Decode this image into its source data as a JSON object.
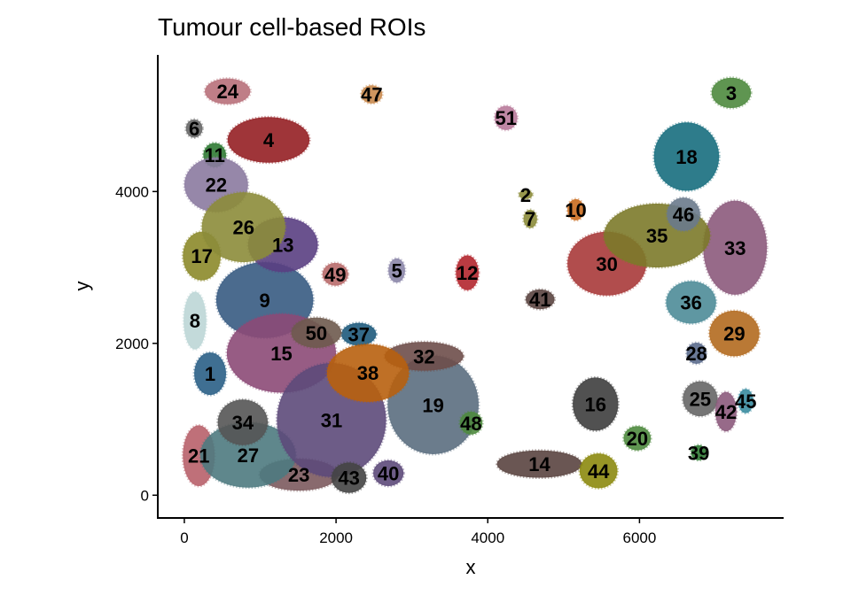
{
  "chart_data": {
    "type": "scatter",
    "title": "Tumour cell-based ROIs",
    "xlabel": "x",
    "ylabel": "y",
    "xlim": [
      -350,
      7900
    ],
    "ylim": [
      -300,
      5800
    ],
    "xticks": [
      0,
      2000,
      4000,
      6000
    ],
    "xtick_labels": [
      "0",
      "2000",
      "4000",
      "6000"
    ],
    "yticks": [
      0,
      2000,
      4000
    ],
    "ytick_labels": [
      "0",
      "2000",
      "4000"
    ],
    "regions": [
      {
        "label": "1",
        "x": 340,
        "y": 1600,
        "rx": 210,
        "ry": 280,
        "color": "#2a5f86"
      },
      {
        "label": "2",
        "x": 4500,
        "y": 3960,
        "rx": 90,
        "ry": 60,
        "color": "#8c8c3a"
      },
      {
        "label": "3",
        "x": 7210,
        "y": 5300,
        "rx": 260,
        "ry": 200,
        "color": "#4e8a3e"
      },
      {
        "label": "4",
        "x": 1110,
        "y": 4680,
        "rx": 540,
        "ry": 300,
        "color": "#951f24"
      },
      {
        "label": "5",
        "x": 2800,
        "y": 2960,
        "rx": 110,
        "ry": 160,
        "color": "#8b86a8"
      },
      {
        "label": "6",
        "x": 130,
        "y": 4830,
        "rx": 110,
        "ry": 120,
        "color": "#666666"
      },
      {
        "label": "7",
        "x": 4560,
        "y": 3640,
        "rx": 90,
        "ry": 120,
        "color": "#8c8c3a"
      },
      {
        "label": "8",
        "x": 140,
        "y": 2300,
        "rx": 150,
        "ry": 380,
        "color": "#bcd6d6"
      },
      {
        "label": "9",
        "x": 1060,
        "y": 2570,
        "rx": 640,
        "ry": 500,
        "color": "#375b82"
      },
      {
        "label": "10",
        "x": 5160,
        "y": 3760,
        "rx": 110,
        "ry": 140,
        "color": "#c96c1f"
      },
      {
        "label": "11",
        "x": 400,
        "y": 4480,
        "rx": 150,
        "ry": 160,
        "color": "#2f7a33"
      },
      {
        "label": "12",
        "x": 3730,
        "y": 2930,
        "rx": 150,
        "ry": 230,
        "color": "#b3262e"
      },
      {
        "label": "13",
        "x": 1300,
        "y": 3300,
        "rx": 460,
        "ry": 360,
        "color": "#5a3f82"
      },
      {
        "label": "14",
        "x": 4680,
        "y": 410,
        "rx": 560,
        "ry": 180,
        "color": "#5a4440"
      },
      {
        "label": "15",
        "x": 1280,
        "y": 1870,
        "rx": 720,
        "ry": 520,
        "color": "#8c4a77"
      },
      {
        "label": "16",
        "x": 5420,
        "y": 1200,
        "rx": 300,
        "ry": 350,
        "color": "#3e3e3e"
      },
      {
        "label": "17",
        "x": 230,
        "y": 3150,
        "rx": 250,
        "ry": 320,
        "color": "#8c8a2a"
      },
      {
        "label": "18",
        "x": 6620,
        "y": 4460,
        "rx": 430,
        "ry": 450,
        "color": "#176e7e"
      },
      {
        "label": "19",
        "x": 3280,
        "y": 1190,
        "rx": 600,
        "ry": 650,
        "color": "#5b6e80"
      },
      {
        "label": "20",
        "x": 5970,
        "y": 750,
        "rx": 180,
        "ry": 160,
        "color": "#4e8a3e"
      },
      {
        "label": "21",
        "x": 190,
        "y": 520,
        "rx": 210,
        "ry": 400,
        "color": "#b8616a"
      },
      {
        "label": "22",
        "x": 420,
        "y": 4090,
        "rx": 420,
        "ry": 360,
        "color": "#8b7aa0"
      },
      {
        "label": "23",
        "x": 1510,
        "y": 270,
        "rx": 520,
        "ry": 210,
        "color": "#7c5a5e"
      },
      {
        "label": "24",
        "x": 570,
        "y": 5320,
        "rx": 300,
        "ry": 170,
        "color": "#b8707a"
      },
      {
        "label": "25",
        "x": 6800,
        "y": 1270,
        "rx": 230,
        "ry": 230,
        "color": "#666666"
      },
      {
        "label": "26",
        "x": 780,
        "y": 3530,
        "rx": 550,
        "ry": 460,
        "color": "#8c8c3a"
      },
      {
        "label": "27",
        "x": 840,
        "y": 530,
        "rx": 630,
        "ry": 430,
        "color": "#4e7a80"
      },
      {
        "label": "28",
        "x": 6750,
        "y": 1870,
        "rx": 130,
        "ry": 140,
        "color": "#5a6a8c"
      },
      {
        "label": "29",
        "x": 7250,
        "y": 2130,
        "rx": 330,
        "ry": 300,
        "color": "#b36a1f"
      },
      {
        "label": "30",
        "x": 5570,
        "y": 3050,
        "rx": 520,
        "ry": 420,
        "color": "#a83a3a"
      },
      {
        "label": "31",
        "x": 1940,
        "y": 990,
        "rx": 720,
        "ry": 750,
        "color": "#5d4a7a"
      },
      {
        "label": "32",
        "x": 3160,
        "y": 1830,
        "rx": 520,
        "ry": 190,
        "color": "#6e4e4a"
      },
      {
        "label": "33",
        "x": 7260,
        "y": 3260,
        "rx": 420,
        "ry": 620,
        "color": "#8c5a7c"
      },
      {
        "label": "34",
        "x": 770,
        "y": 960,
        "rx": 330,
        "ry": 300,
        "color": "#555555"
      },
      {
        "label": "35",
        "x": 6230,
        "y": 3420,
        "rx": 700,
        "ry": 420,
        "color": "#7c7a2a"
      },
      {
        "label": "36",
        "x": 6680,
        "y": 2540,
        "rx": 330,
        "ry": 280,
        "color": "#4e8c98"
      },
      {
        "label": "37",
        "x": 2300,
        "y": 2120,
        "rx": 230,
        "ry": 150,
        "color": "#1e5a7c"
      },
      {
        "label": "38",
        "x": 2420,
        "y": 1610,
        "rx": 540,
        "ry": 380,
        "color": "#b8600e"
      },
      {
        "label": "39",
        "x": 6780,
        "y": 560,
        "rx": 100,
        "ry": 100,
        "color": "#2f7a33"
      },
      {
        "label": "40",
        "x": 2690,
        "y": 290,
        "rx": 200,
        "ry": 170,
        "color": "#5d4a7a"
      },
      {
        "label": "41",
        "x": 4690,
        "y": 2580,
        "rx": 190,
        "ry": 130,
        "color": "#5a4440"
      },
      {
        "label": "42",
        "x": 7140,
        "y": 1100,
        "rx": 140,
        "ry": 260,
        "color": "#8c5a7c"
      },
      {
        "label": "43",
        "x": 2170,
        "y": 230,
        "rx": 230,
        "ry": 200,
        "color": "#444444"
      },
      {
        "label": "44",
        "x": 5460,
        "y": 320,
        "rx": 250,
        "ry": 230,
        "color": "#8c8a0e"
      },
      {
        "label": "45",
        "x": 7400,
        "y": 1240,
        "rx": 100,
        "ry": 160,
        "color": "#3a8ca0"
      },
      {
        "label": "46",
        "x": 6580,
        "y": 3700,
        "rx": 220,
        "ry": 220,
        "color": "#6a7a8c"
      },
      {
        "label": "47",
        "x": 2470,
        "y": 5280,
        "rx": 140,
        "ry": 120,
        "color": "#c98a4e"
      },
      {
        "label": "48",
        "x": 3780,
        "y": 950,
        "rx": 150,
        "ry": 150,
        "color": "#4e8a3e"
      },
      {
        "label": "49",
        "x": 1990,
        "y": 2910,
        "rx": 170,
        "ry": 150,
        "color": "#b86a6a"
      },
      {
        "label": "50",
        "x": 1740,
        "y": 2140,
        "rx": 330,
        "ry": 200,
        "color": "#6e5a4e"
      },
      {
        "label": "51",
        "x": 4240,
        "y": 4970,
        "rx": 150,
        "ry": 160,
        "color": "#b87a9a"
      }
    ]
  }
}
